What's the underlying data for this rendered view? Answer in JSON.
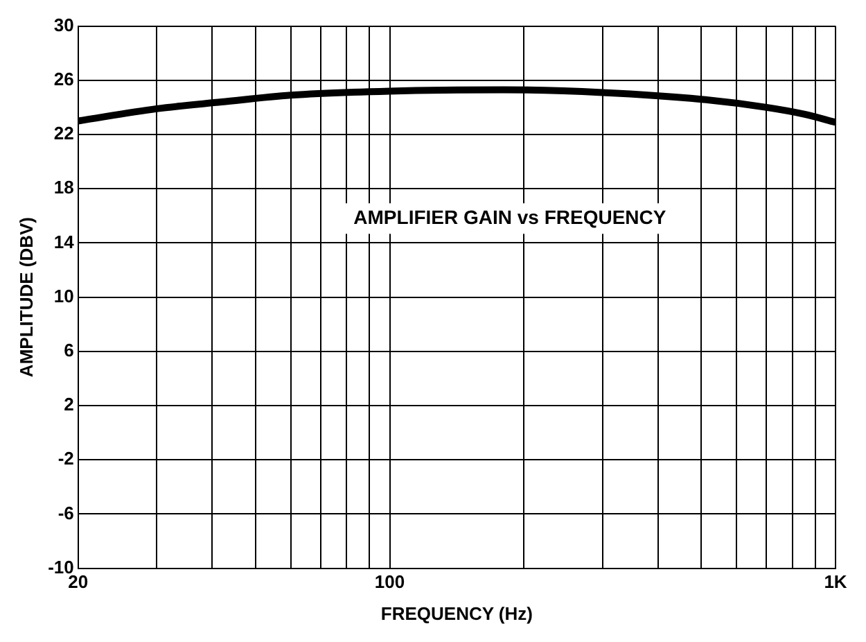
{
  "chart_data": {
    "type": "line",
    "title": "AMPLIFIER GAIN vs FREQUENCY",
    "xlabel": "FREQUENCY (Hz)",
    "ylabel": "AMPLITUDE (DBV)",
    "x": [
      20,
      30,
      42,
      60,
      100,
      180,
      300,
      500,
      700,
      850,
      1000
    ],
    "series": [
      {
        "color": "#000000",
        "values": [
          23.0,
          23.9,
          24.4,
          24.9,
          25.2,
          25.3,
          25.1,
          24.6,
          24.0,
          23.5,
          22.9
        ]
      }
    ],
    "log": "x",
    "xlim": [
      20,
      1000
    ],
    "xticks": [
      20,
      {
        "value": 30,
        "label": null
      },
      {
        "value": 40,
        "label": null
      },
      {
        "value": 50,
        "label": null
      },
      {
        "value": 60,
        "label": null
      },
      {
        "value": 70,
        "label": null
      },
      {
        "value": 80,
        "label": null
      },
      {
        "value": 90,
        "label": null
      },
      100,
      {
        "value": 200,
        "label": null
      },
      {
        "value": 300,
        "label": null
      },
      {
        "value": 400,
        "label": null
      },
      {
        "value": 500,
        "label": null
      },
      {
        "value": 600,
        "label": null
      },
      {
        "value": 700,
        "label": null
      },
      {
        "value": 800,
        "label": null
      },
      {
        "value": 900,
        "label": null
      },
      {
        "value": 1000,
        "label": "1K"
      }
    ],
    "ylim": [
      -10,
      30
    ],
    "yticks": [
      -10,
      -6,
      -2,
      2,
      6,
      10,
      14,
      18,
      22,
      26,
      30
    ],
    "grid": true,
    "legend": false,
    "marker": "none",
    "line_style": "solid"
  }
}
